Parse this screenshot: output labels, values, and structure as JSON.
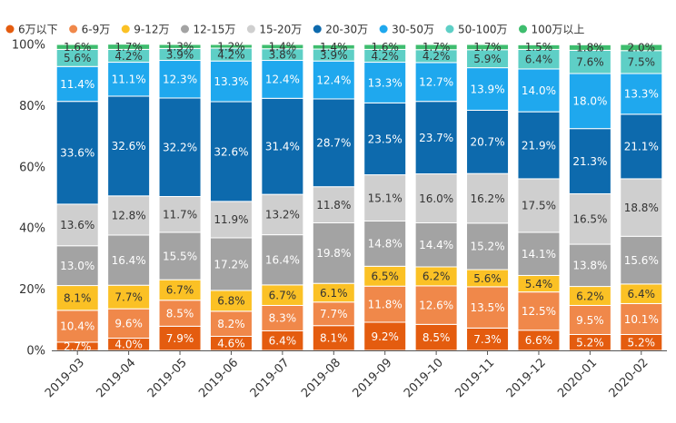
{
  "chart_data": {
    "type": "bar",
    "stacked": true,
    "normalized": true,
    "title": "",
    "xlabel": "",
    "ylabel": "",
    "ylim": [
      0,
      100
    ],
    "y_ticks": [
      "0%",
      "20%",
      "40%",
      "60%",
      "80%",
      "100%"
    ],
    "grid": false,
    "legend_position": "top",
    "categories": [
      "2019-03",
      "2019-04",
      "2019-05",
      "2019-06",
      "2019-07",
      "2019-08",
      "2019-09",
      "2019-10",
      "2019-11",
      "2019-12",
      "2020-01",
      "2020-02"
    ],
    "series": [
      {
        "name": "6万以下",
        "color": "#e45c0f",
        "label_color": "#ffffff",
        "values": [
          2.7,
          4.0,
          7.9,
          4.6,
          6.4,
          8.1,
          9.2,
          8.5,
          7.3,
          6.6,
          5.2,
          5.2
        ],
        "labels": [
          "2.7%",
          "4.0%",
          "7.9%",
          "4.6%",
          "6.4%",
          "8.1%",
          "9.2%",
          "8.5%",
          "7.3%",
          "6.6%",
          "5.2%",
          "5.2%"
        ]
      },
      {
        "name": "6-9万",
        "color": "#f0884a",
        "label_color": "#ffffff",
        "values": [
          10.4,
          9.6,
          8.5,
          8.2,
          8.3,
          7.7,
          11.8,
          12.6,
          13.5,
          12.5,
          9.5,
          10.1
        ],
        "labels": [
          "10.4%",
          "9.6%",
          "8.5%",
          "8.2%",
          "8.3%",
          "7.7%",
          "11.8%",
          "12.6%",
          "13.5%",
          "12.5%",
          "9.5%",
          "10.1%"
        ]
      },
      {
        "name": "9-12万",
        "color": "#fbc125",
        "label_color": "#333333",
        "values": [
          8.1,
          7.7,
          6.7,
          6.8,
          6.7,
          6.1,
          6.5,
          6.2,
          5.6,
          5.4,
          6.2,
          6.4
        ],
        "labels": [
          "8.1%",
          "7.7%",
          "6.7%",
          "6.8%",
          "6.7%",
          "6.1%",
          "6.5%",
          "6.2%",
          "5.6%",
          "5.4%",
          "6.2%",
          "6.4%"
        ]
      },
      {
        "name": "12-15万",
        "color": "#a3a3a3",
        "label_color": "#ffffff",
        "values": [
          13.0,
          16.4,
          15.5,
          17.2,
          16.4,
          19.8,
          14.8,
          14.4,
          15.2,
          14.1,
          13.8,
          15.6
        ],
        "labels": [
          "13.0%",
          "16.4%",
          "15.5%",
          "17.2%",
          "16.4%",
          "19.8%",
          "14.8%",
          "14.4%",
          "15.2%",
          "14.1%",
          "13.8%",
          "15.6%"
        ]
      },
      {
        "name": "15-20万",
        "color": "#cfcfcf",
        "label_color": "#333333",
        "values": [
          13.6,
          12.8,
          11.7,
          11.9,
          13.2,
          11.8,
          15.1,
          16.0,
          16.2,
          17.5,
          16.5,
          18.8
        ],
        "labels": [
          "13.6%",
          "12.8%",
          "11.7%",
          "11.9%",
          "13.2%",
          "11.8%",
          "15.1%",
          "16.0%",
          "16.2%",
          "17.5%",
          "16.5%",
          "18.8%"
        ]
      },
      {
        "name": "20-30万",
        "color": "#0d6aad",
        "label_color": "#ffffff",
        "values": [
          33.6,
          32.6,
          32.2,
          32.6,
          31.4,
          28.7,
          23.5,
          23.7,
          20.7,
          21.9,
          21.3,
          21.1
        ],
        "labels": [
          "33.6%",
          "32.6%",
          "32.2%",
          "32.6%",
          "31.4%",
          "28.7%",
          "23.5%",
          "23.7%",
          "20.7%",
          "21.9%",
          "21.3%",
          "21.1%"
        ]
      },
      {
        "name": "30-50万",
        "color": "#1fa8ee",
        "label_color": "#ffffff",
        "values": [
          11.4,
          11.1,
          12.3,
          13.3,
          12.4,
          12.4,
          13.3,
          12.7,
          13.9,
          14.0,
          18.0,
          13.3
        ],
        "labels": [
          "11.4%",
          "11.1%",
          "12.3%",
          "13.3%",
          "12.4%",
          "12.4%",
          "13.3%",
          "12.7%",
          "13.9%",
          "14.0%",
          "18.0%",
          "13.3%"
        ]
      },
      {
        "name": "50-100万",
        "color": "#5ecfc6",
        "label_color": "#333333",
        "values": [
          5.6,
          4.2,
          3.9,
          4.2,
          3.8,
          3.9,
          4.2,
          4.2,
          5.9,
          6.4,
          7.6,
          7.5
        ],
        "labels": [
          "5.6%",
          "4.2%",
          "3.9%",
          "4.2%",
          "3.8%",
          "3.9%",
          "4.2%",
          "4.2%",
          "5.9%",
          "6.4%",
          "7.6%",
          "7.5%"
        ]
      },
      {
        "name": "100万以上",
        "color": "#3ebd6e",
        "label_color": "#333333",
        "values": [
          1.6,
          1.7,
          1.3,
          1.2,
          1.4,
          1.4,
          1.6,
          1.7,
          1.7,
          1.5,
          1.8,
          2.0
        ],
        "labels": [
          "1.6%",
          "1.7%",
          "1.3%",
          "1.2%",
          "1.4%",
          "1.4%",
          "1.6%",
          "1.7%",
          "1.7%",
          "1.5%",
          "1.8%",
          "2.0%"
        ]
      }
    ]
  }
}
